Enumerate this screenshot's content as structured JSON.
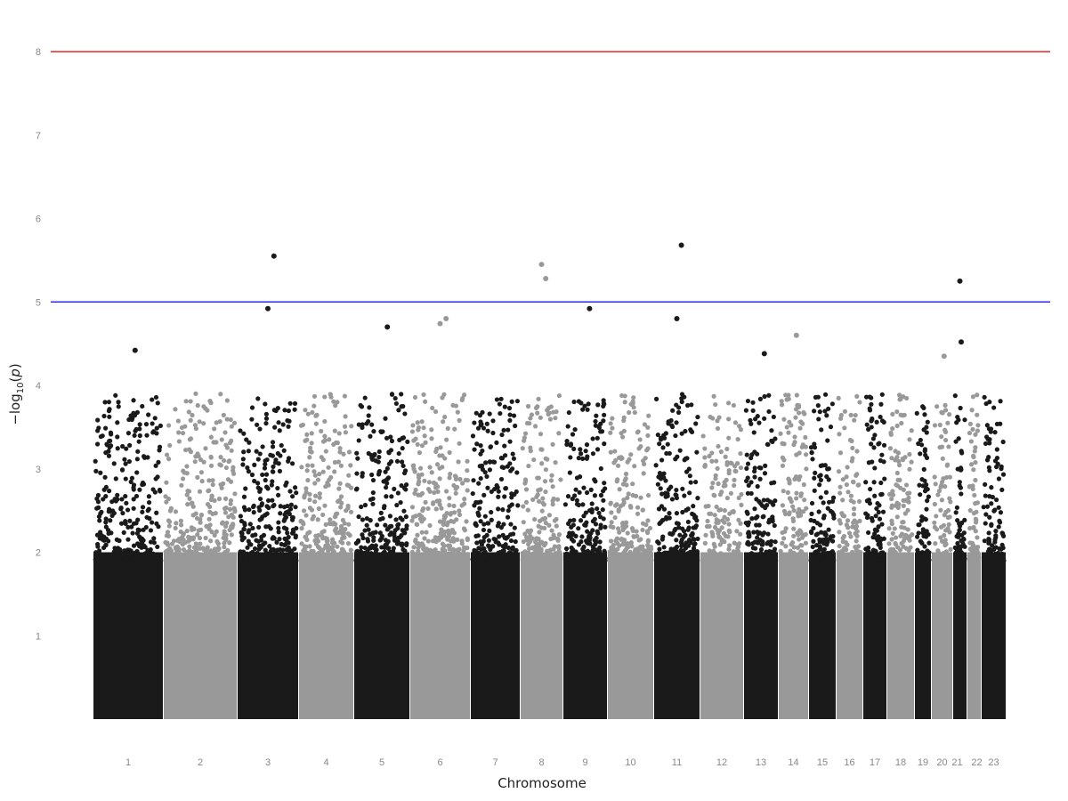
{
  "chart_data": {
    "type": "scatter",
    "subtype": "manhattan",
    "title": "",
    "xlabel": "Chromosome",
    "ylabel_parts": {
      "pre": "−log",
      "sub": "10",
      "open": "(",
      "p": "p",
      "close": ")"
    },
    "ylim": [
      0,
      8.5
    ],
    "y_ticks": [
      "1",
      "2",
      "3",
      "4",
      "5",
      "6",
      "7",
      "8"
    ],
    "grid": false,
    "legend": "none",
    "chromosomes": [
      "1",
      "2",
      "3",
      "4",
      "5",
      "6",
      "7",
      "8",
      "9",
      "10",
      "11",
      "12",
      "13",
      "14",
      "15",
      "16",
      "17",
      "18",
      "19",
      "20",
      "21",
      "22",
      "23"
    ],
    "colors": {
      "odd": "#1a1a1a",
      "even": "#999999",
      "genomewide_line": "#e8262b",
      "suggestive_line": "#2b2bf0"
    },
    "thresholds": {
      "genomewide": 8,
      "suggestive": 5
    },
    "dense_band_max": 2.0,
    "top_hits": [
      {
        "chr": "1",
        "value": 4.42
      },
      {
        "chr": "3",
        "value": 5.55
      },
      {
        "chr": "3",
        "value": 4.92
      },
      {
        "chr": "5",
        "value": 4.7
      },
      {
        "chr": "6",
        "value": 4.8
      },
      {
        "chr": "6",
        "value": 4.74
      },
      {
        "chr": "8",
        "value": 5.28
      },
      {
        "chr": "8",
        "value": 5.45
      },
      {
        "chr": "9",
        "value": 4.92
      },
      {
        "chr": "11",
        "value": 5.68
      },
      {
        "chr": "11",
        "value": 4.8
      },
      {
        "chr": "13",
        "value": 4.38
      },
      {
        "chr": "14",
        "value": 4.6
      },
      {
        "chr": "20",
        "value": 4.35
      },
      {
        "chr": "21",
        "value": 4.52
      },
      {
        "chr": "21",
        "value": 5.25
      }
    ]
  }
}
